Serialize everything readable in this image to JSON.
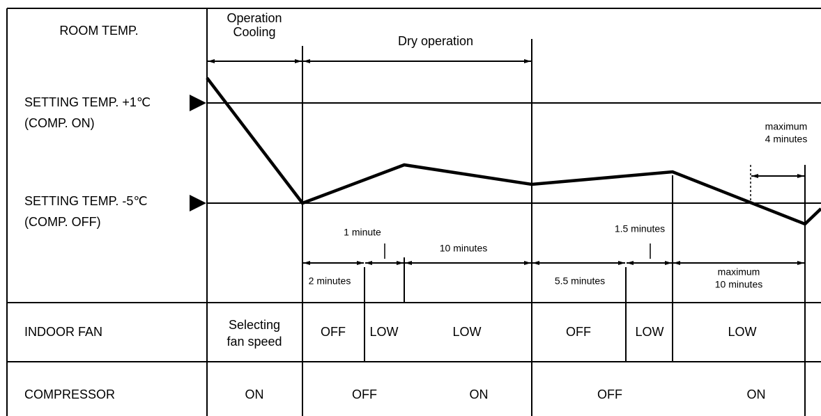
{
  "row_labels": {
    "room_temp": "ROOM TEMP.",
    "indoor_fan": "INDOOR FAN",
    "compressor": "COMPRESSOR"
  },
  "levels": [
    {
      "lines": [
        "SETTING TEMP. +1℃",
        "(COMP. ON)"
      ]
    },
    {
      "lines": [
        "SETTING TEMP. -5℃",
        "(COMP. OFF)"
      ]
    }
  ],
  "phases": [
    {
      "lines": [
        "Operation",
        "Cooling"
      ]
    },
    {
      "lines": [
        "Dry operation"
      ]
    }
  ],
  "intervals": [
    {
      "lines": [
        "2 minutes"
      ]
    },
    {
      "lines": [
        "1 minute"
      ]
    },
    {
      "lines": [
        "10 minutes"
      ]
    },
    {
      "lines": [
        "5.5 minutes"
      ]
    },
    {
      "lines": [
        "1.5 minutes"
      ]
    },
    {
      "lines": [
        "maximum",
        "10 minutes"
      ]
    },
    {
      "lines": [
        "maximum",
        "4 minutes"
      ]
    }
  ],
  "indoor_fan": [
    {
      "lines": [
        "Selecting",
        "fan speed"
      ]
    },
    {
      "lines": [
        "OFF"
      ]
    },
    {
      "lines": [
        "LOW"
      ]
    },
    {
      "lines": [
        "LOW"
      ]
    },
    {
      "lines": [
        "OFF"
      ]
    },
    {
      "lines": [
        "LOW"
      ]
    },
    {
      "lines": [
        "LOW"
      ]
    }
  ],
  "compressor": [
    {
      "lines": [
        "ON"
      ]
    },
    {
      "lines": [
        "OFF"
      ]
    },
    {
      "lines": [
        "ON"
      ]
    },
    {
      "lines": [
        "OFF"
      ]
    },
    {
      "lines": [
        "ON"
      ]
    }
  ]
}
